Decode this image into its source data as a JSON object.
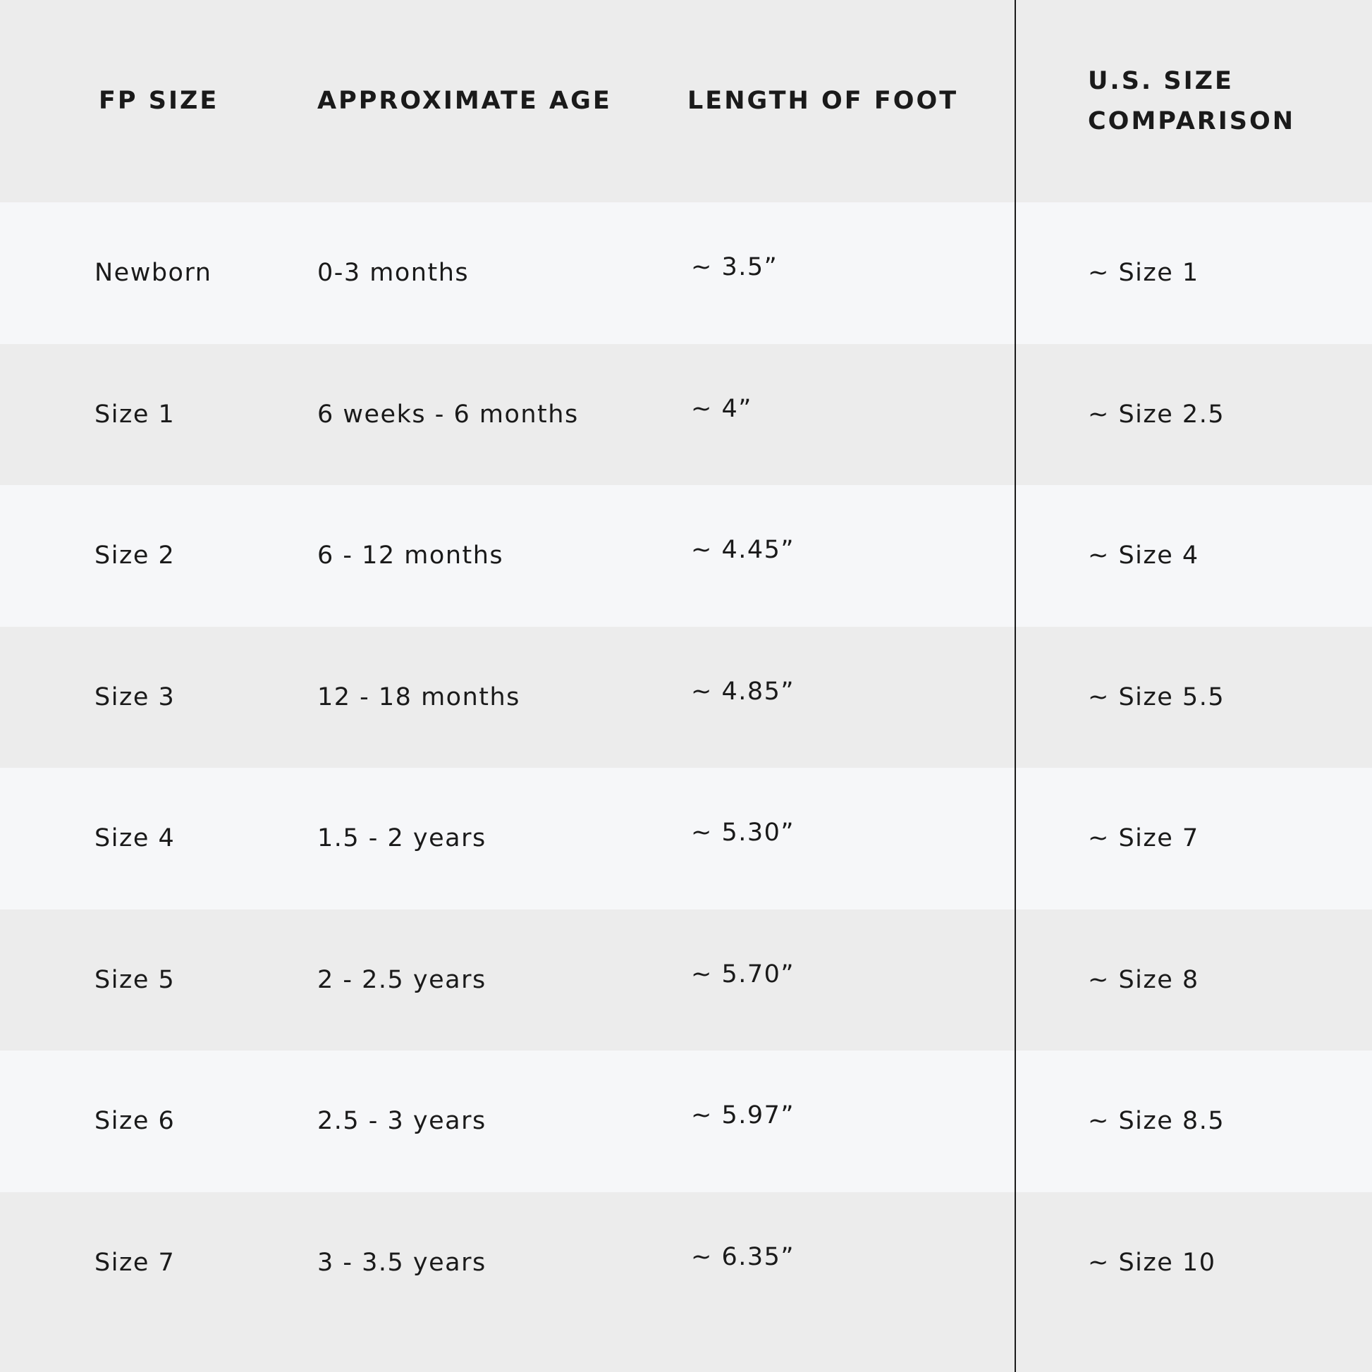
{
  "header": {
    "columns": [
      "FP SIZE",
      "APPROXIMATE AGE",
      "LENGTH OF FOOT",
      "U.S. SIZE COMPARISON"
    ]
  },
  "table": {
    "rows": [
      [
        "Newborn",
        "0-3 months",
        "~ 3.5”",
        "~ Size 1"
      ],
      [
        "Size 1",
        "6 weeks - 6 months",
        "~ 4”",
        "~ Size 2.5"
      ],
      [
        "Size 2",
        "6 - 12 months",
        "~ 4.45”",
        "~ Size 4"
      ],
      [
        "Size 3",
        "12 - 18 months",
        "~ 4.85”",
        "~ Size 5.5"
      ],
      [
        "Size 4",
        "1.5 - 2 years",
        "~ 5.30”",
        "~ Size 7"
      ],
      [
        "Size 5",
        "2 - 2.5 years",
        "~ 5.70”",
        "~ Size 8"
      ],
      [
        "Size 6",
        "2.5 - 3 years",
        "~ 5.97”",
        "~ Size 8.5"
      ],
      [
        "Size 7",
        "3 - 3.5 years",
        "~ 6.35”",
        "~ Size 10"
      ]
    ]
  }
}
